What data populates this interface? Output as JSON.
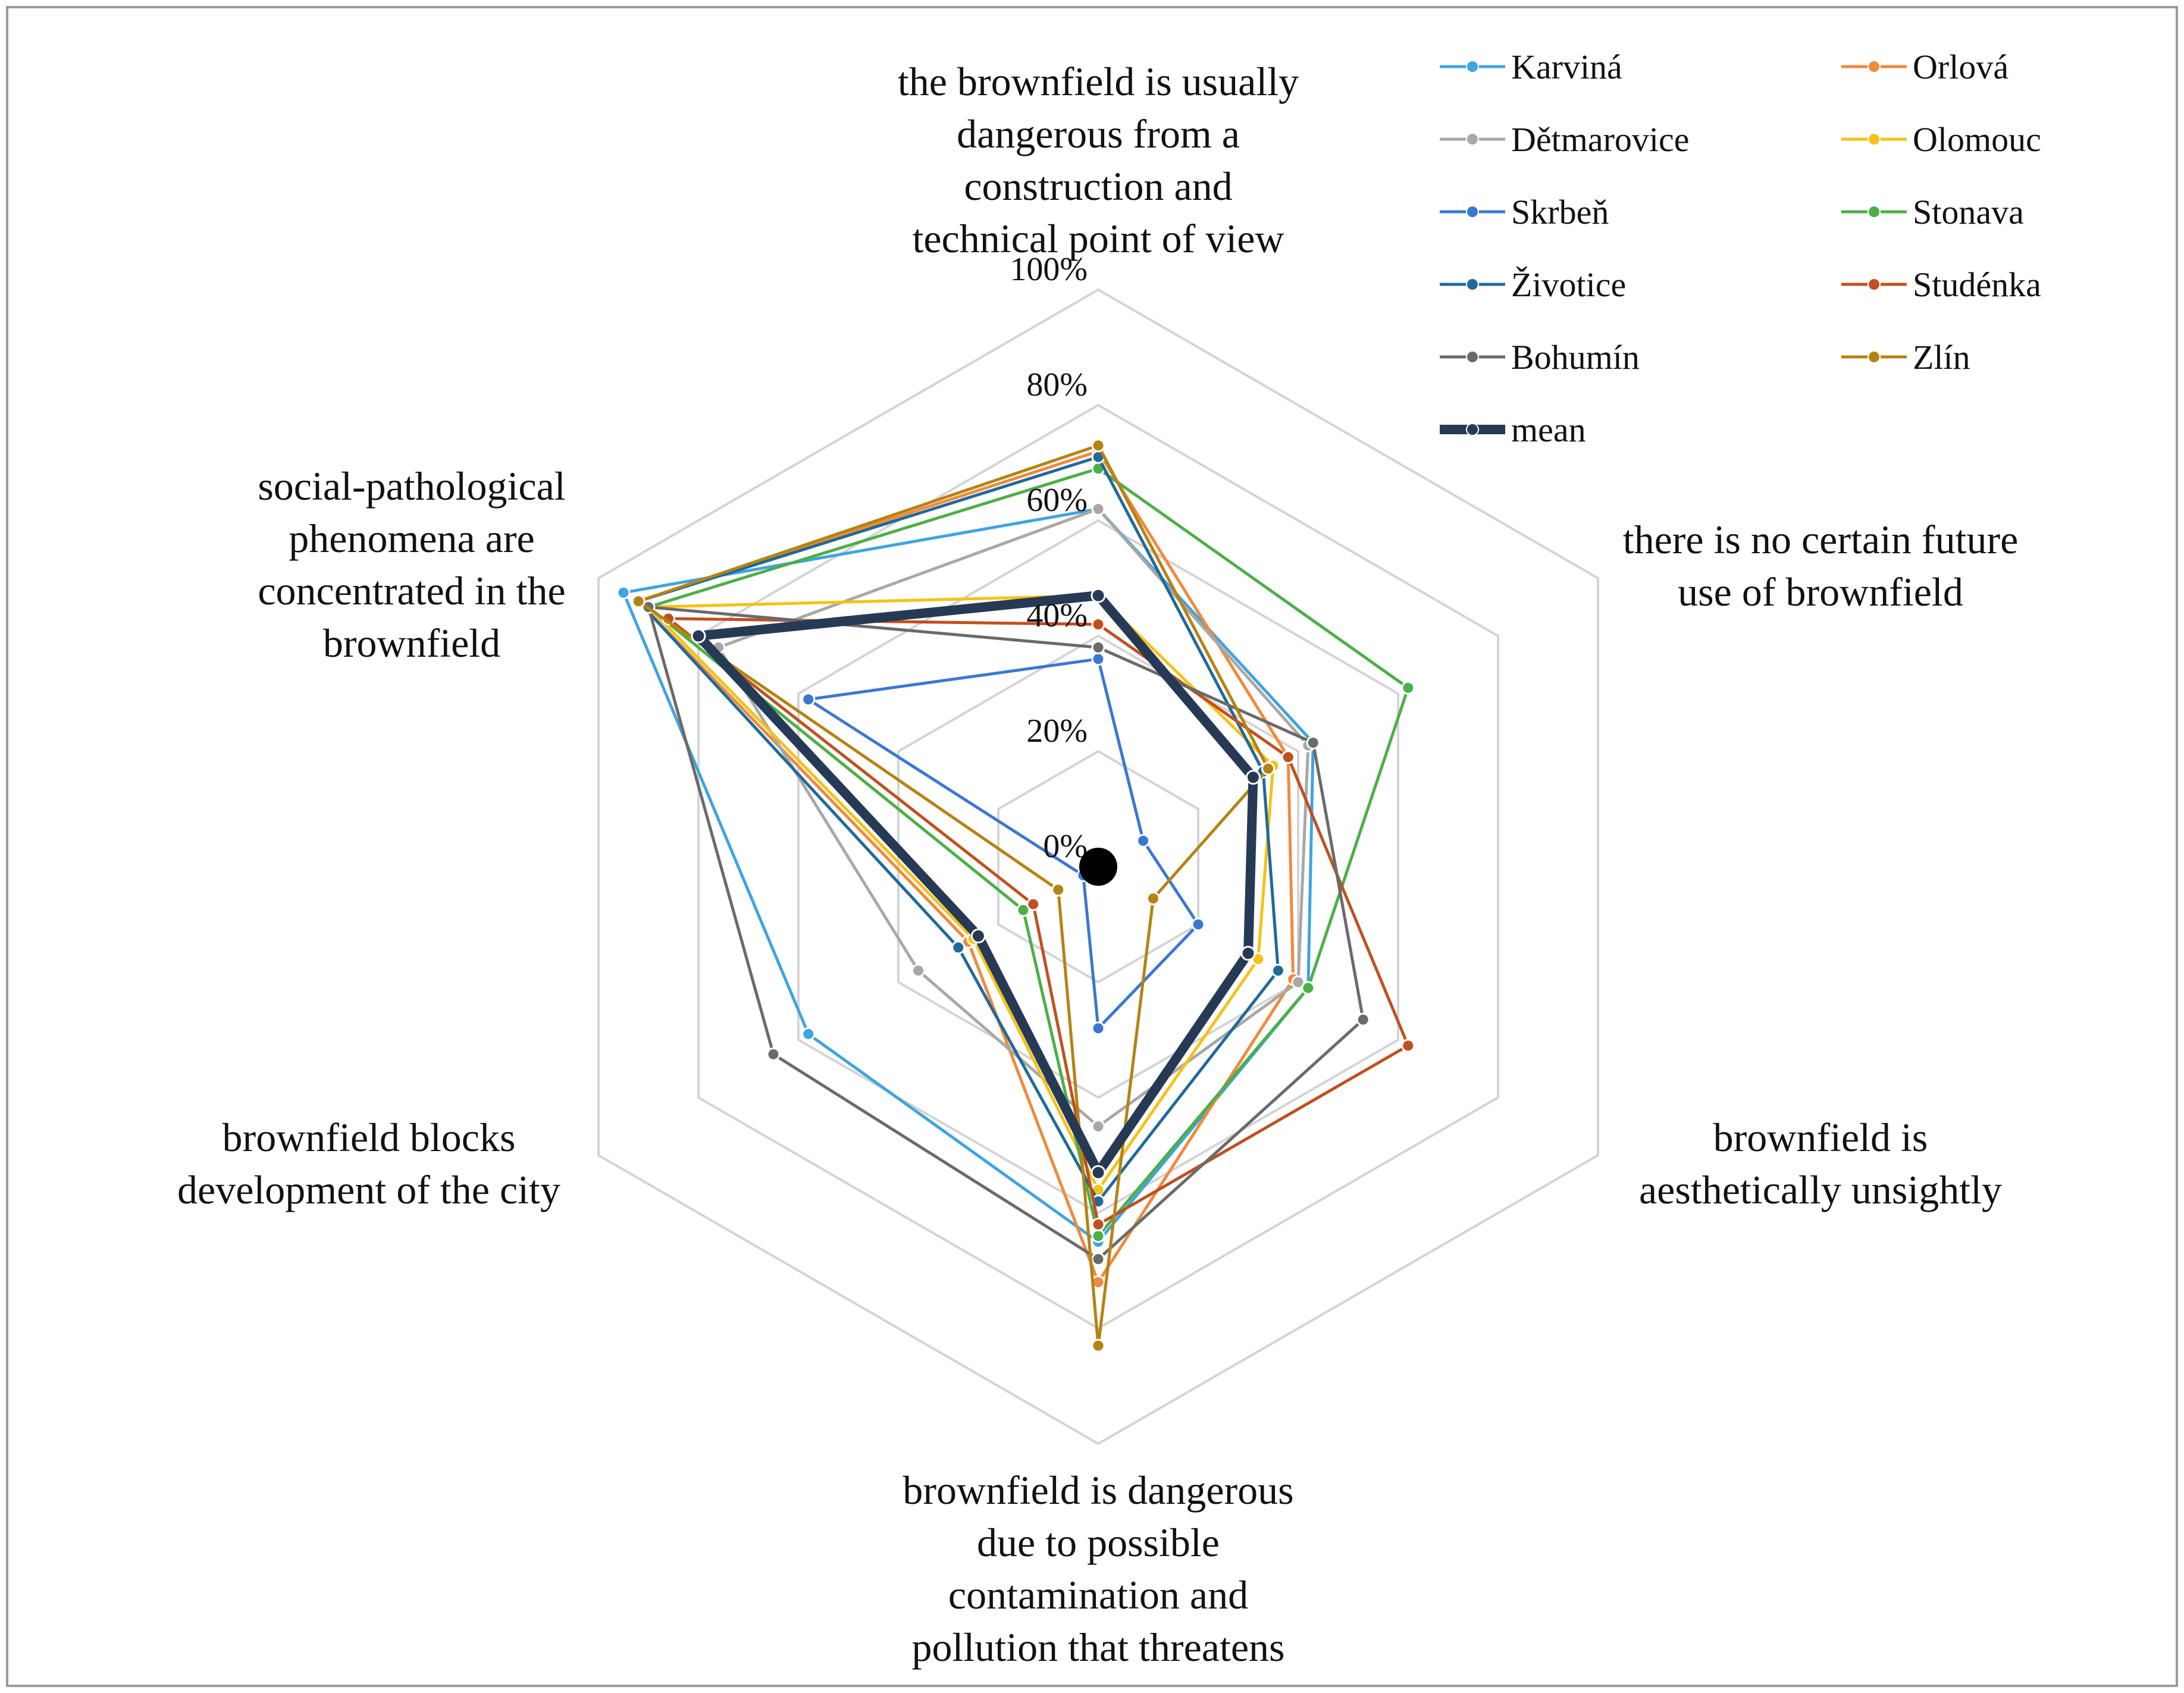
{
  "chart_data": {
    "type": "radar",
    "axes": [
      {
        "id": "dangerous_construction",
        "lines": [
          "the brownfield is usually",
          "dangerous from a",
          "construction and",
          "technical point of view"
        ]
      },
      {
        "id": "no_future_use",
        "lines": [
          "there is no certain future",
          "use of brownfield"
        ]
      },
      {
        "id": "aesthetically_unsightly",
        "lines": [
          "brownfield is",
          "aesthetically unsightly"
        ]
      },
      {
        "id": "contamination",
        "lines": [
          "brownfield is dangerous",
          "due to possible",
          "contamination and",
          "pollution that threatens"
        ]
      },
      {
        "id": "blocks_development",
        "lines": [
          "brownfield blocks",
          "development of the city"
        ]
      },
      {
        "id": "social_pathological",
        "lines": [
          "social-pathological",
          "phenomena are",
          "concentrated in the",
          "brownfield"
        ]
      }
    ],
    "ticks": [
      "0%",
      "20%",
      "40%",
      "60%",
      "80%",
      "100%"
    ],
    "range": [
      0,
      100
    ],
    "grid": true,
    "legend_position": "top-right",
    "series": [
      {
        "name": "Karviná",
        "color": "#3fa4e0",
        "values": [
          62,
          43,
          42,
          65,
          58,
          95
        ]
      },
      {
        "name": "Orlová",
        "color": "#f08a3c",
        "values": [
          72,
          38,
          39,
          72,
          26,
          92
        ]
      },
      {
        "name": "Dětmarovice",
        "color": "#a8a8a8",
        "values": [
          62,
          42,
          40,
          45,
          36,
          76
        ]
      },
      {
        "name": "Olomouc",
        "color": "#f5c217",
        "values": [
          47,
          35,
          32,
          56,
          25,
          90
        ]
      },
      {
        "name": "Skrbeň",
        "color": "#3a78d0",
        "values": [
          36,
          9,
          20,
          28,
          3,
          58
        ]
      },
      {
        "name": "Stonava",
        "color": "#4caf47",
        "values": [
          69,
          62,
          42,
          64,
          15,
          90
        ]
      },
      {
        "name": "Životice",
        "color": "#1f6a9a",
        "values": [
          71,
          33,
          36,
          58,
          28,
          92
        ]
      },
      {
        "name": "Studénka",
        "color": "#c0501f",
        "values": [
          42,
          38,
          62,
          62,
          13,
          86
        ]
      },
      {
        "name": "Bohumín",
        "color": "#6a6a6a",
        "values": [
          38,
          43,
          53,
          68,
          65,
          90
        ]
      },
      {
        "name": "Zlín",
        "color": "#b58312",
        "values": [
          73,
          34,
          11,
          83,
          8,
          92
        ]
      },
      {
        "name": "mean",
        "color": "#263a55",
        "values": [
          47,
          31,
          30,
          53,
          24,
          80
        ]
      }
    ]
  }
}
